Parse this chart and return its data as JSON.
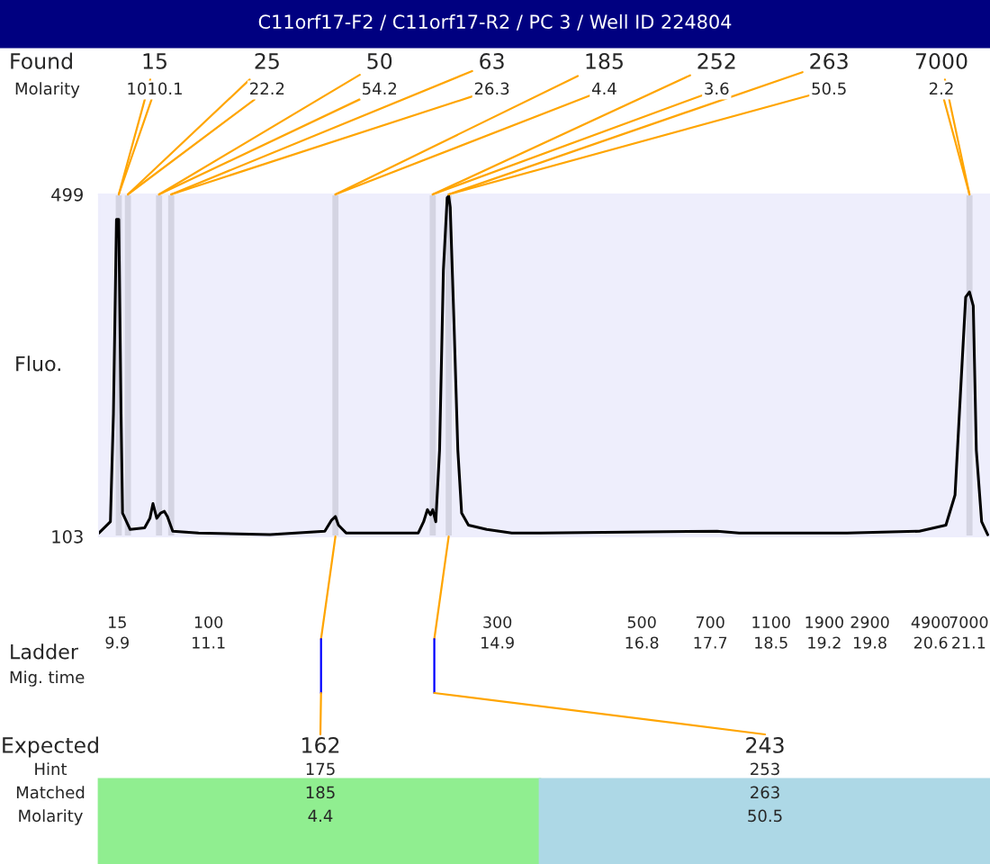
{
  "chart_data": {
    "type": "line",
    "title": "C11orf17-F2 / C11orf17-R2 / PC 3 / Well ID 224804",
    "ylabel": "Fluo.",
    "x": [
      9.66,
      9.81,
      9.85,
      9.89,
      9.92,
      9.95,
      9.97,
      10.07,
      10.26,
      10.33,
      10.37,
      10.42,
      10.47,
      10.52,
      10.56,
      10.63,
      10.97,
      11.91,
      12.63,
      12.72,
      12.77,
      12.81,
      12.91,
      13.86,
      13.93,
      13.98,
      14.02,
      14.05,
      14.09,
      14.14,
      14.19,
      14.24,
      14.26,
      14.28,
      14.33,
      14.38,
      14.43,
      14.52,
      14.76,
      15.09,
      15.47,
      17.79,
      18.08,
      19.5,
      20.45,
      20.8,
      20.92,
      20.99,
      21.06,
      21.11,
      21.16,
      21.2,
      21.27,
      21.35
    ],
    "series": [
      {
        "color": "#000000",
        "values": [
          107,
          120,
          245,
          470,
          470,
          245,
          130,
          111,
          113,
          124,
          141,
          124,
          130,
          132,
          126,
          109,
          107,
          105,
          109,
          122,
          126,
          116,
          107,
          107,
          120,
          134,
          128,
          134,
          120,
          203,
          411,
          495,
          497,
          484,
          349,
          203,
          130,
          116,
          111,
          107,
          107,
          109,
          107,
          107,
          109,
          116,
          151,
          266,
          380,
          386,
          370,
          203,
          120,
          105
        ]
      }
    ],
    "xlim": [
      9.66,
      21.38
    ],
    "ylim": [
      103,
      499
    ],
    "yticks": [
      103,
      499
    ],
    "xticks": [
      9.9,
      11.1,
      14.9,
      16.8,
      17.7,
      18.5,
      19.2,
      19.8,
      20.6,
      21.1
    ],
    "bands": [
      {
        "axis": "x",
        "from": 9.88,
        "to": 9.96,
        "color": "#d4d4e2"
      },
      {
        "axis": "x",
        "from": 10.0,
        "to": 10.08,
        "color": "#d4d4e2"
      },
      {
        "axis": "x",
        "from": 10.41,
        "to": 10.49,
        "color": "#d4d4e2"
      },
      {
        "axis": "x",
        "from": 10.57,
        "to": 10.65,
        "color": "#d4d4e2"
      },
      {
        "axis": "x",
        "from": 12.73,
        "to": 12.81,
        "color": "#d4d4e2"
      },
      {
        "axis": "x",
        "from": 14.01,
        "to": 14.09,
        "color": "#d4d4e2"
      },
      {
        "axis": "x",
        "from": 14.22,
        "to": 14.3,
        "color": "#d4d4e2"
      },
      {
        "axis": "x",
        "from": 21.07,
        "to": 21.15,
        "color": "#d4d4e2"
      }
    ],
    "annotations": [
      "Found",
      "Molarity",
      {
        "text": "1010.1",
        "x": 9.92,
        "y": 499
      },
      {
        "text": "22.2",
        "x": 10.04,
        "y": 499
      },
      {
        "text": "54.2",
        "x": 10.45,
        "y": 499
      },
      {
        "text": "26.3",
        "x": 10.61,
        "y": 499
      },
      {
        "text": "4.4",
        "x": 12.77,
        "y": 499
      },
      {
        "text": "3.6",
        "x": 14.05,
        "y": 499
      },
      {
        "text": "50.5",
        "x": 14.26,
        "y": 499
      },
      {
        "text": "2.2",
        "x": 21.11,
        "y": 499
      },
      "Ladder",
      "Mig. time",
      "Expected",
      "Hint",
      "Matched",
      "Molarity",
      "162",
      "175",
      "185",
      "4.4",
      "243",
      "253",
      "263",
      "50.5",
      "15",
      "100",
      "300",
      "500",
      "700",
      "1100",
      "1900",
      "2900",
      "4900",
      "7000",
      {
        "text": "15",
        "x": 9.92,
        "y": 499
      },
      {
        "text": "25",
        "x": 10.04,
        "y": 499
      },
      {
        "text": "50",
        "x": 10.45,
        "y": 499
      },
      {
        "text": "63",
        "x": 10.61,
        "y": 499
      },
      {
        "text": "185",
        "x": 12.77,
        "y": 499
      },
      {
        "text": "252",
        "x": 14.05,
        "y": 499
      },
      {
        "text": "263",
        "x": 14.26,
        "y": 499
      },
      {
        "text": "7000",
        "x": 21.11,
        "y": 499
      }
    ],
    "grid": false,
    "legend": false,
    "marker": "none",
    "line_style": "solid"
  }
}
